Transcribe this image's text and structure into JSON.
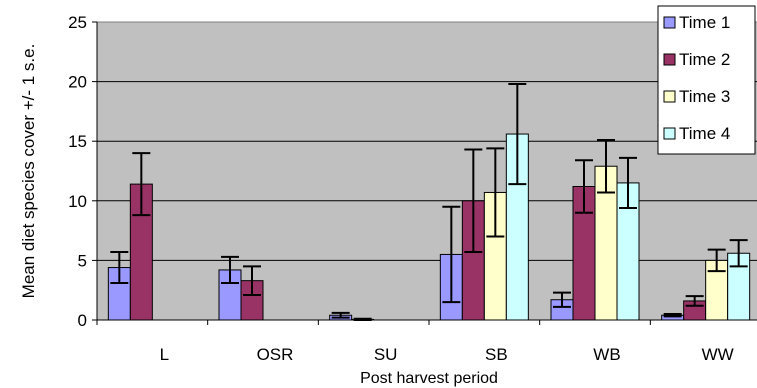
{
  "chart_data": {
    "type": "bar",
    "title": "",
    "xlabel": "Post harvest period",
    "ylabel": "Mean diet species cover +/- 1 s.e.",
    "categories": [
      "L",
      "OSR",
      "SU",
      "SB",
      "WB",
      "WW"
    ],
    "ylim": [
      0,
      25
    ],
    "yticks": [
      "0",
      "5",
      "10",
      "15",
      "20",
      "25"
    ],
    "grid": true,
    "legend_position": "top-right",
    "series": [
      {
        "name": "Time 1",
        "color": "#9999ff",
        "values": [
          4.4,
          4.2,
          0.4,
          5.5,
          1.7,
          0.4
        ],
        "errors": [
          1.3,
          1.1,
          0.2,
          4.0,
          0.6,
          0.1
        ]
      },
      {
        "name": "Time 2",
        "color": "#993366",
        "values": [
          11.4,
          3.3,
          0.05,
          10.0,
          11.2,
          1.6
        ],
        "errors": [
          2.6,
          1.2,
          0.05,
          4.3,
          2.2,
          0.4
        ]
      },
      {
        "name": "Time 3",
        "color": "#ffffcc",
        "values": [
          null,
          null,
          null,
          10.7,
          12.9,
          5.0
        ],
        "errors": [
          null,
          null,
          null,
          3.7,
          2.2,
          0.9
        ]
      },
      {
        "name": "Time 4",
        "color": "#ccffff",
        "values": [
          null,
          null,
          null,
          15.6,
          11.5,
          5.6
        ],
        "errors": [
          null,
          null,
          null,
          4.2,
          2.1,
          1.1
        ]
      }
    ]
  }
}
